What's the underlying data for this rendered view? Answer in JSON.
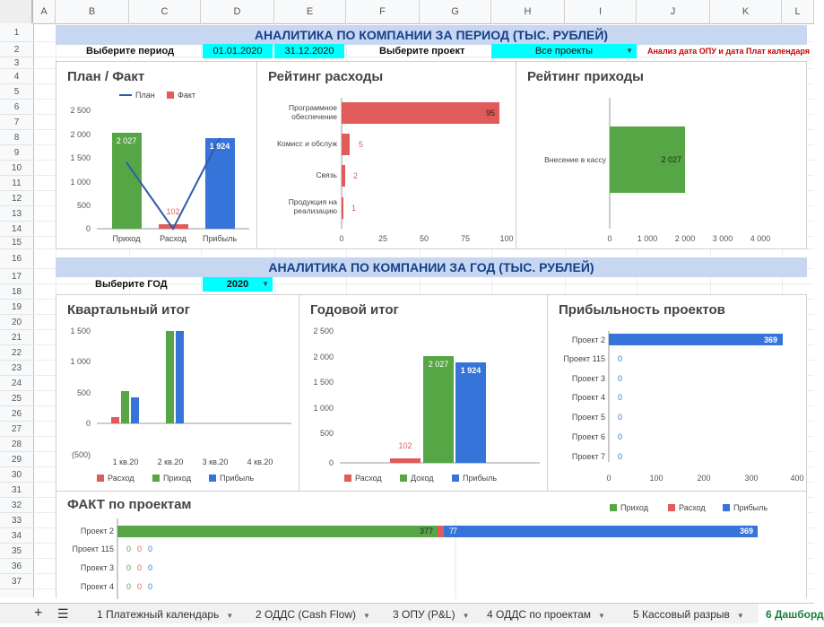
{
  "columns": [
    "A",
    "B",
    "C",
    "D",
    "E",
    "F",
    "G",
    "H",
    "I",
    "J",
    "K",
    "L"
  ],
  "rows": [
    "1",
    "2",
    "3",
    "4",
    "5",
    "6",
    "7",
    "8",
    "9",
    "10",
    "11",
    "12",
    "13",
    "14",
    "15",
    "16",
    "17",
    "18",
    "19",
    "20",
    "21",
    "22",
    "23",
    "24",
    "25",
    "26",
    "27",
    "28",
    "29",
    "30",
    "31",
    "32",
    "33",
    "34",
    "35",
    "36",
    "37"
  ],
  "header1": "АНАЛИТИКА ПО КОМПАНИИ ЗА ПЕРИОД (ТЫС. РУБЛЕЙ)",
  "period_label": "Выберите период",
  "date_from": "01.01.2020",
  "date_to": "31.12.2020",
  "project_label": "Выберите проект",
  "project_value": "Все проекты",
  "note": "Анализ дата ОПУ и дата Плат календаря",
  "header2": "АНАЛИТИКА ПО КОМПАНИИ ЗА ГОД (ТЫС. РУБЛЕЙ)",
  "year_label": "Выберите ГОД",
  "year_value": "2020",
  "colors": {
    "green": "#57a645",
    "red": "#e15b5b",
    "blue": "#3674d9",
    "line": "#2f5ea8"
  },
  "charts": {
    "plan_fact": {
      "title": "План / Факт",
      "legend": [
        "План",
        "Факт"
      ],
      "yticks": [
        "2 500",
        "2 000",
        "1 500",
        "1 000",
        "500",
        "0"
      ],
      "categories": [
        "Приход",
        "Расход",
        "Прибыль"
      ],
      "bar_labels": [
        "2 027",
        "102",
        "1 924"
      ]
    },
    "exp_rating": {
      "title": "Рейтинг расходы",
      "categories": [
        "Программное обеспечение",
        "Комисс и обслуж",
        "Связь",
        "Продукция на реализацию"
      ],
      "cat_lines": [
        [
          "Программное",
          "обеспечение"
        ],
        [
          "Комисс и обслуж"
        ],
        [
          "Связь"
        ],
        [
          "Продукция на",
          "реализацию"
        ]
      ],
      "labels": [
        "95",
        "5",
        "2",
        "1"
      ],
      "xticks": [
        "0",
        "25",
        "50",
        "75",
        "100"
      ]
    },
    "inc_rating": {
      "title": "Рейтинг приходы",
      "category": "Внесение в кассу",
      "label": "2 027",
      "xticks": [
        "0",
        "1 000",
        "2 000",
        "3 000",
        "4 000"
      ]
    },
    "quarterly": {
      "title": "Квартальный итог",
      "yticks": [
        "1 500",
        "1 000",
        "500",
        "0",
        "(500)"
      ],
      "categories": [
        "1 кв.20",
        "2 кв.20",
        "3 кв.20",
        "4 кв.20"
      ],
      "legend": [
        "Расход",
        "Приход",
        "Прибыль"
      ]
    },
    "yearly": {
      "title": "Годовой итог",
      "yticks": [
        "2 500",
        "2 000",
        "1 500",
        "1 000",
        "500",
        "0"
      ],
      "labels": [
        "102",
        "2 027",
        "1 924"
      ],
      "legend": [
        "Расход",
        "Доход",
        "Прибыль"
      ]
    },
    "profitability": {
      "title": "Прибыльность проектов",
      "categories": [
        "Проект 2",
        "Проект 115",
        "Проект 3",
        "Проект 4",
        "Проект 5",
        "Проект 6",
        "Проект 7"
      ],
      "labels": [
        "369",
        "0",
        "0",
        "0",
        "0",
        "0",
        "0"
      ],
      "xticks": [
        "0",
        "100",
        "200",
        "300",
        "400"
      ]
    },
    "fact_projects": {
      "title": "ФАКТ по проектам",
      "legend": [
        "Приход",
        "Расход",
        "Прибыль"
      ],
      "categories": [
        "Проект 2",
        "Проект 115",
        "Проект 3",
        "Проект 4"
      ],
      "p2_labels": [
        "377",
        "7",
        "7",
        "369"
      ],
      "zero": "0"
    }
  },
  "chart_data": [
    {
      "type": "bar",
      "title": "План / Факт",
      "categories": [
        "Приход",
        "Расход",
        "Прибыль"
      ],
      "series": [
        {
          "name": "Факт",
          "values": [
            2027,
            102,
            1924
          ]
        },
        {
          "name": "План",
          "values": [
            1400,
            0,
            1924
          ]
        }
      ],
      "ylim": [
        0,
        2500
      ],
      "legend": "top"
    },
    {
      "type": "bar",
      "title": "Рейтинг расходы",
      "categories": [
        "Программное обеспечение",
        "Комисс и обслуж",
        "Связь",
        "Продукция на реализацию"
      ],
      "values": [
        95,
        5,
        2,
        1
      ],
      "xlim": [
        0,
        100
      ]
    },
    {
      "type": "bar",
      "title": "Рейтинг приходы",
      "categories": [
        "Внесение в кассу"
      ],
      "values": [
        2027
      ],
      "xlim": [
        0,
        4000
      ]
    },
    {
      "type": "bar",
      "title": "Квартальный итог",
      "categories": [
        "1 кв.20",
        "2 кв.20",
        "3 кв.20",
        "4 кв.20"
      ],
      "series": [
        {
          "name": "Расход",
          "values": [
            100,
            0,
            0,
            0
          ]
        },
        {
          "name": "Приход",
          "values": [
            520,
            1500,
            0,
            0
          ]
        },
        {
          "name": "Прибыль",
          "values": [
            420,
            1500,
            0,
            0
          ]
        }
      ],
      "ylim": [
        -500,
        1500
      ],
      "legend": "bottom"
    },
    {
      "type": "bar",
      "title": "Годовой итог",
      "categories": [
        "Расход",
        "Доход",
        "Прибыль"
      ],
      "values": [
        102,
        2027,
        1924
      ],
      "ylim": [
        0,
        2500
      ],
      "legend": "bottom"
    },
    {
      "type": "bar",
      "title": "Прибыльность проектов",
      "categories": [
        "Проект 2",
        "Проект 115",
        "Проект 3",
        "Проект 4",
        "Проект 5",
        "Проект 6",
        "Проект 7"
      ],
      "values": [
        369,
        0,
        0,
        0,
        0,
        0,
        0
      ],
      "xlim": [
        0,
        400
      ]
    },
    {
      "type": "bar",
      "title": "ФАКТ по проектам",
      "categories": [
        "Проект 2",
        "Проект 115",
        "Проект 3",
        "Проект 4"
      ],
      "series": [
        {
          "name": "Приход",
          "values": [
            377,
            0,
            0,
            0
          ]
        },
        {
          "name": "Расход",
          "values": [
            7,
            0,
            0,
            0
          ]
        },
        {
          "name": "Прибыль",
          "values": [
            369,
            0,
            0,
            0
          ]
        }
      ],
      "legend": "top-right"
    }
  ],
  "tabs": [
    "1 Платежный календарь",
    "2 ОДДС (Cash Flow)",
    "3 ОПУ (P&L)",
    "4 ОДДС по проектам",
    "5 Кассовый разрыв",
    "6 Дашборд"
  ]
}
